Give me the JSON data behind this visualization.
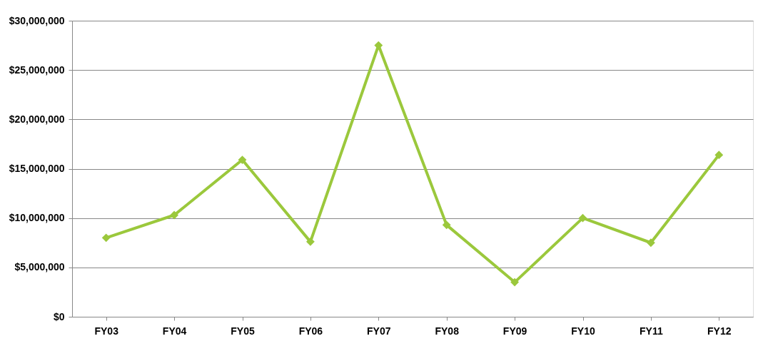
{
  "chart_data": {
    "type": "line",
    "categories": [
      "FY03",
      "FY04",
      "FY05",
      "FY06",
      "FY07",
      "FY08",
      "FY09",
      "FY10",
      "FY11",
      "FY12"
    ],
    "series": [
      {
        "color": "#9bc83c",
        "values": [
          8000000,
          10300000,
          15900000,
          7600000,
          27500000,
          9300000,
          3500000,
          10000000,
          7500000,
          16400000
        ]
      }
    ],
    "ylim": [
      0,
      30000000
    ],
    "yticks": [
      {
        "value": 0,
        "label": "$0"
      },
      {
        "value": 5000000,
        "label": "$5,000,000"
      },
      {
        "value": 10000000,
        "label": "$10,000,000"
      },
      {
        "value": 15000000,
        "label": "$15,000,000"
      },
      {
        "value": 20000000,
        "label": "$20,000,000"
      },
      {
        "value": 25000000,
        "label": "$25,000,000"
      },
      {
        "value": 30000000,
        "label": "$30,000,000"
      }
    ],
    "grid": "y",
    "marker": "diamond",
    "line_style": "solid",
    "legend": false
  }
}
